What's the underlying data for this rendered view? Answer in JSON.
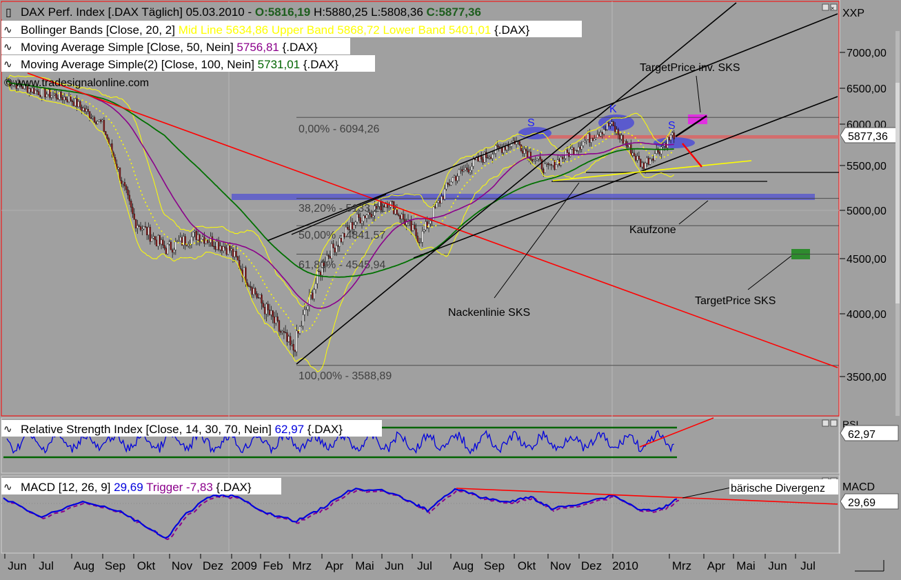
{
  "header": {
    "main": "DAX Perf. Index [.DAX  Täglich] 05.03.2010 - ",
    "open": "O:5816,19",
    "high": "H:5880,25",
    "low": "L:5808,36",
    "close": "C:5877,36",
    "bb_prefix": "Bollinger Bands [Close, 20, 2]",
    "bb_values": "Mid Line 5634,86 Upper Band 5868,72 Lower Band 5401,01",
    "bb_suffix": "{.DAX}",
    "ma50_prefix": "Moving Average Simple [Close, 50, Nein]",
    "ma50_value": "5756,81",
    "ma50_suffix": "{.DAX}",
    "ma100_prefix": "Moving Average Simple(2) [Close, 100, Nein]",
    "ma100_value": "5731,01",
    "ma100_suffix": "{.DAX}",
    "watermark": "© www.tradesignalonline.com"
  },
  "price_axis": {
    "symbol": "XXP",
    "ticks": [
      "7000,00",
      "6500,00",
      "6000,00",
      "5500,00",
      "5000,00",
      "4500,00",
      "4000,00",
      "3500,00"
    ],
    "last_price": "5877,36"
  },
  "annotations": {
    "target_inv_sks": "TargetPrice inv. SKS",
    "kaufzone": "Kaufzone",
    "nackenlinie": "Nackenlinie SKS",
    "target_sks": "TargetPrice SKS",
    "s1": "S",
    "k": "K",
    "s2": "S",
    "baerische": "bärische Divergenz"
  },
  "fibonacci": [
    {
      "label": "0,00% - 6094,26"
    },
    {
      "label": "38,20% - 5133,21"
    },
    {
      "label": "50,00% - 4841,57"
    },
    {
      "label": "61,80% - 4545,94"
    },
    {
      "label": "100,00% - 3588,89"
    }
  ],
  "rsi": {
    "prefix": "Relative Strength Index [Close, 14, 30, 70, Nein]",
    "value": "62,97",
    "suffix": "{.DAX}",
    "axis_label": "RSI",
    "axis_value": "62,97"
  },
  "macd": {
    "prefix": "MACD [12, 26, 9]",
    "value": "29,69",
    "trigger_label": "Trigger",
    "trigger_value": "-7,83",
    "suffix": "{.DAX}",
    "axis_label": "MACD",
    "axis_value": "29,69"
  },
  "colors": {
    "background": "#a0a0a0",
    "candle_up": "#ffffff",
    "candle_down": "#8b1a1a",
    "bollinger": "#ffff00",
    "ma50": "#8b008b",
    "ma100": "#007000",
    "trend_red": "#ff0000",
    "rsi": "#0000dd",
    "macd": "#0000dd",
    "trigger": "#8b008b",
    "zone": "#5a5acd"
  },
  "chart_data": {
    "type": "candlestick",
    "title": "DAX Perf. Index [.DAX Täglich] 05.03.2010",
    "x_tick_labels": [
      "Jun",
      "Jul",
      "Aug",
      "Sep",
      "Okt",
      "Nov",
      "Dez",
      "2009",
      "Feb",
      "Mrz",
      "Apr",
      "Mai",
      "Jun",
      "Jul",
      "Aug",
      "Sep",
      "Okt",
      "Nov",
      "Dez",
      "2010",
      "Mrz",
      "Apr",
      "Mai",
      "Jun",
      "Jul"
    ],
    "y_ticks": [
      7000,
      6500,
      6000,
      5500,
      5000,
      4500,
      4000,
      3500
    ],
    "ylim": [
      3200,
      7200
    ],
    "ohlc_last": {
      "open": 5816.19,
      "high": 5880.25,
      "low": 5808.36,
      "close": 5877.36
    },
    "close_series_monthly": {
      "x": [
        "2008-06",
        "2008-07",
        "2008-08",
        "2008-09",
        "2008-10",
        "2008-11",
        "2008-12",
        "2009-01",
        "2009-02",
        "2009-03",
        "2009-04",
        "2009-05",
        "2009-06",
        "2009-07",
        "2009-08",
        "2009-09",
        "2009-10",
        "2009-11",
        "2009-12",
        "2010-01",
        "2010-02",
        "2010-03"
      ],
      "y": [
        6600,
        6450,
        6350,
        6000,
        4900,
        4600,
        4750,
        4600,
        4100,
        3700,
        4500,
        4900,
        5100,
        4700,
        5350,
        5600,
        5800,
        5450,
        5750,
        6000,
        5500,
        5877
      ]
    },
    "fibonacci_levels": [
      6094.26,
      5133.21,
      4841.57,
      4545.94,
      3588.89
    ],
    "bollinger_last": {
      "mid": 5634.86,
      "upper": 5868.72,
      "lower": 5401.01
    },
    "ma50_last": 5756.81,
    "ma100_last": 5731.01,
    "rsi_last": 62.97,
    "macd_last": 29.69,
    "trigger_last": -7.83
  }
}
